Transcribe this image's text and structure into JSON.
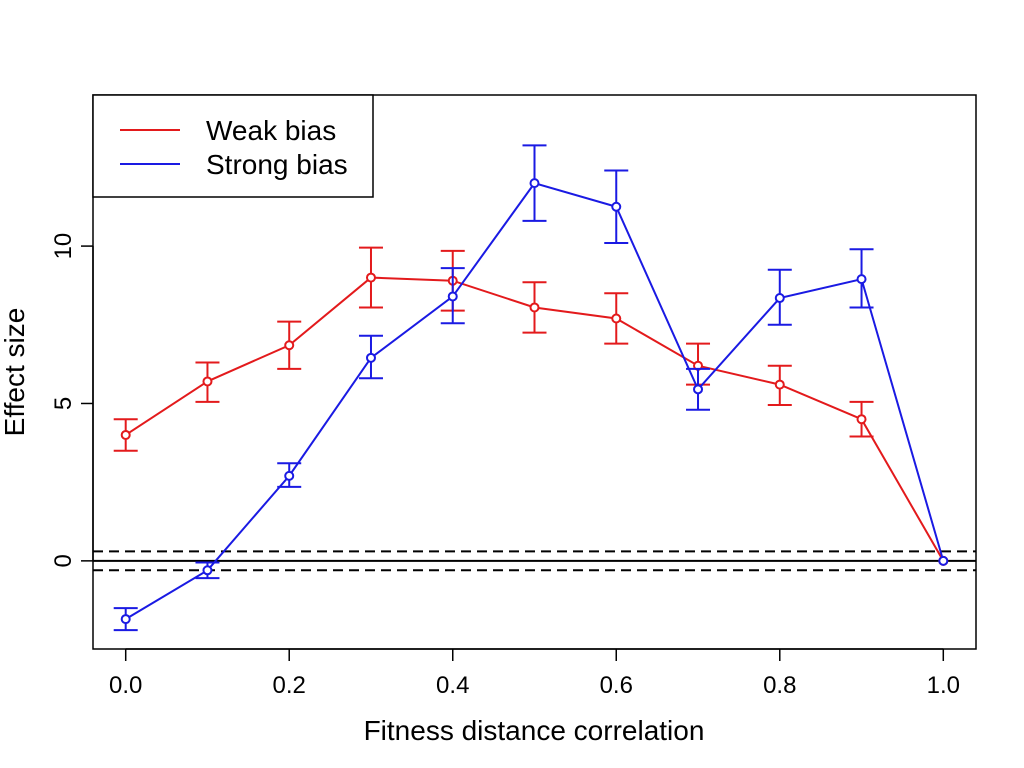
{
  "chart_data": {
    "type": "line",
    "title": "",
    "xlabel": "Fitness distance correlation",
    "ylabel": "Effect size",
    "xlim": [
      -0.04,
      1.04
    ],
    "ylim": [
      -2.8,
      14.8
    ],
    "xticks": [
      0.0,
      0.2,
      0.4,
      0.6,
      0.8,
      1.0
    ],
    "xtick_labels": [
      "0.0",
      "0.2",
      "0.4",
      "0.6",
      "0.8",
      "1.0"
    ],
    "yticks": [
      0,
      5,
      10
    ],
    "ytick_labels": [
      "0",
      "5",
      "10"
    ],
    "x": [
      0.0,
      0.1,
      0.2,
      0.3,
      0.4,
      0.5,
      0.6,
      0.7,
      0.8,
      0.9,
      1.0
    ],
    "series": [
      {
        "name": "Weak bias",
        "color": "#e31a1c",
        "values": [
          4.0,
          5.7,
          6.85,
          9.0,
          8.9,
          8.05,
          7.7,
          6.2,
          5.6,
          4.5,
          0.0
        ],
        "err_low": [
          3.5,
          5.05,
          6.1,
          8.05,
          7.95,
          7.25,
          6.9,
          5.6,
          4.95,
          3.95,
          0.0
        ],
        "err_high": [
          4.5,
          6.3,
          7.6,
          9.95,
          9.85,
          8.85,
          8.5,
          6.9,
          6.2,
          5.05,
          0.0
        ]
      },
      {
        "name": "Strong bias",
        "color": "#1a1ae3",
        "values": [
          -1.85,
          -0.3,
          2.7,
          6.45,
          8.4,
          12.0,
          11.25,
          5.45,
          8.35,
          8.95,
          0.0
        ],
        "err_low": [
          -2.2,
          -0.55,
          2.35,
          5.8,
          7.55,
          10.8,
          10.1,
          4.8,
          7.5,
          8.05,
          0.0
        ],
        "err_high": [
          -1.5,
          -0.05,
          3.1,
          7.15,
          9.3,
          13.2,
          12.4,
          6.1,
          9.25,
          9.9,
          0.0
        ]
      }
    ],
    "reference_lines": [
      {
        "y": 0.3,
        "style": "dashed"
      },
      {
        "y": 0.0,
        "style": "solid"
      },
      {
        "y": -0.3,
        "style": "dashed"
      }
    ],
    "legend_position": "top-left",
    "grid": false
  }
}
